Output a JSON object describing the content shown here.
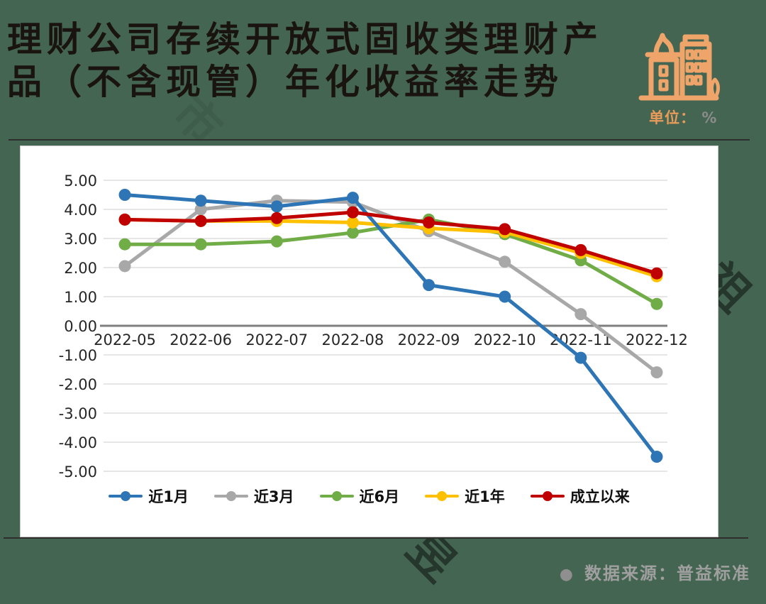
{
  "page": {
    "bg_color": "#446551",
    "unit_label": "单位：",
    "unit_value": "%"
  },
  "header": {
    "title_line1": "理财公司存续开放式固收类理财产",
    "title_line2": "品（不含现管）年化收益率走势",
    "icon": "buildings-icon",
    "icon_color": "#efa56a"
  },
  "footer": {
    "bullet": "●",
    "source_text": "数据来源：普益标准"
  },
  "watermark": {
    "chars": [
      "丁",
      "祖",
      "昱",
      "评",
      "楼",
      "市"
    ]
  },
  "chart_data": {
    "type": "line",
    "title": "理财公司存续开放式固收类理财产品（不含现管）年化收益率走势",
    "unit": "%",
    "categories": [
      "2022-05",
      "2022-06",
      "2022-07",
      "2022-08",
      "2022-09",
      "2022-10",
      "2022-11",
      "2022-12"
    ],
    "series": [
      {
        "name": "近3月",
        "color": "#a8a8a8",
        "values": [
          2.05,
          4.0,
          4.3,
          4.25,
          3.25,
          2.2,
          0.4,
          -1.6
        ]
      },
      {
        "name": "近6月",
        "color": "#70ad47",
        "values": [
          2.8,
          2.8,
          2.9,
          3.2,
          3.65,
          3.15,
          2.25,
          0.75
        ]
      },
      {
        "name": "近1年",
        "color": "#ffc000",
        "values": [
          3.65,
          3.6,
          3.6,
          3.55,
          3.35,
          3.22,
          2.5,
          1.7
        ]
      },
      {
        "name": "近1月",
        "color": "#2e75b6",
        "values": [
          4.5,
          4.3,
          4.1,
          4.4,
          1.4,
          1.0,
          -1.1,
          -4.5
        ]
      },
      {
        "name": "成立以来",
        "color": "#c00000",
        "values": [
          3.65,
          3.6,
          3.7,
          3.9,
          3.55,
          3.32,
          2.6,
          1.8
        ]
      }
    ],
    "legend_order": [
      "近1月",
      "近3月",
      "近6月",
      "近1年",
      "成立以来"
    ],
    "ylim": [
      -5,
      5
    ],
    "ytick_step": 1,
    "yticks": [
      "5.00",
      "4.00",
      "3.00",
      "2.00",
      "1.00",
      "0.00",
      "-1.00",
      "-2.00",
      "-3.00",
      "-4.00",
      "-5.00"
    ],
    "grid": true,
    "grid_color": "#dddddd",
    "zero_line_color": "#7f7f7f",
    "axis_text_color": "#262626",
    "legend_position": "bottom"
  }
}
